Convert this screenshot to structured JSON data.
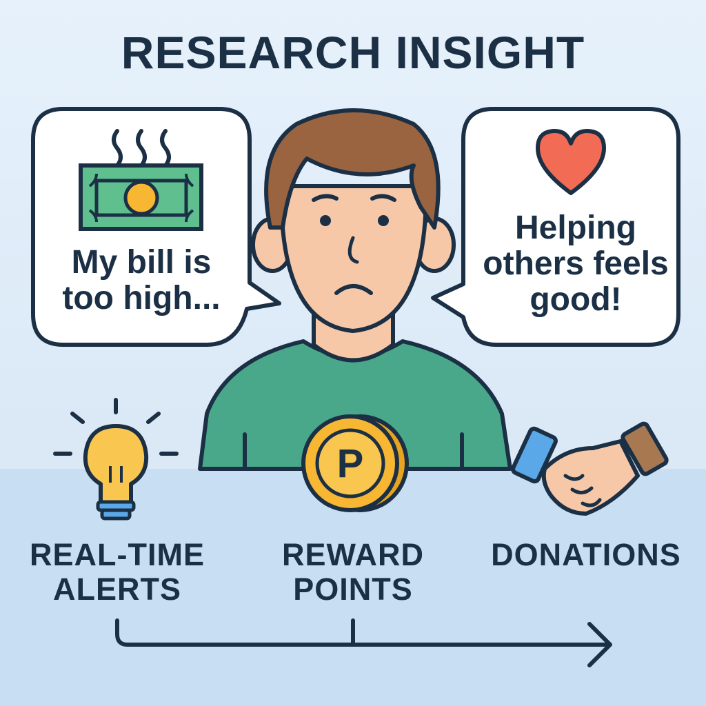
{
  "title": "RESEARCH INSIGHT",
  "bubbles": {
    "left_text": "My bill is too high...",
    "right_text": "Helping others feels good!"
  },
  "features": [
    {
      "label": "REAL-TIME ALERTS",
      "icon": "lightbulb-icon"
    },
    {
      "label": "REWARD POINTS",
      "icon": "coin-icon"
    },
    {
      "label": "DONATIONS",
      "icon": "handshake-icon"
    }
  ],
  "coin_letter": "P",
  "colors": {
    "outline": "#1b2f45",
    "skin": "#f6c8a8",
    "hair": "#9a6440",
    "shirt": "#4aa88a",
    "money": "#5fbf8f",
    "coin": "#f7b733",
    "heart": "#f26b55",
    "bulb": "#f9c74f",
    "sleeve_left": "#5aa8e8",
    "sleeve_right": "#a87950"
  }
}
